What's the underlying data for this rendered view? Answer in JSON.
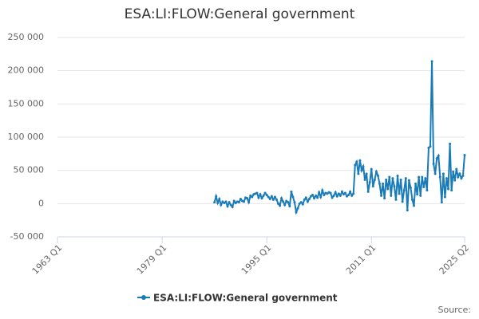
{
  "chart_data": {
    "type": "line",
    "title": "ESA:LI:FLOW:General government",
    "source": "Source:",
    "x": [
      "1987 Q1",
      "1987 Q2",
      "1987 Q3",
      "1987 Q4",
      "1988 Q1",
      "1988 Q2",
      "1988 Q3",
      "1988 Q4",
      "1989 Q1",
      "1989 Q2",
      "1989 Q3",
      "1989 Q4",
      "1990 Q1",
      "1990 Q2",
      "1990 Q3",
      "1990 Q4",
      "1991 Q1",
      "1991 Q2",
      "1991 Q3",
      "1991 Q4",
      "1992 Q1",
      "1992 Q2",
      "1992 Q3",
      "1992 Q4",
      "1993 Q1",
      "1993 Q2",
      "1993 Q3",
      "1993 Q4",
      "1994 Q1",
      "1994 Q2",
      "1994 Q3",
      "1994 Q4",
      "1995 Q1",
      "1995 Q2",
      "1995 Q3",
      "1995 Q4",
      "1996 Q1",
      "1996 Q2",
      "1996 Q3",
      "1996 Q4",
      "1997 Q1",
      "1997 Q2",
      "1997 Q3",
      "1997 Q4",
      "1998 Q1",
      "1998 Q2",
      "1998 Q3",
      "1998 Q4",
      "1999 Q1",
      "1999 Q2",
      "1999 Q3",
      "1999 Q4",
      "2000 Q1",
      "2000 Q2",
      "2000 Q3",
      "2000 Q4",
      "2001 Q1",
      "2001 Q2",
      "2001 Q3",
      "2001 Q4",
      "2002 Q1",
      "2002 Q2",
      "2002 Q3",
      "2002 Q4",
      "2003 Q1",
      "2003 Q2",
      "2003 Q3",
      "2003 Q4",
      "2004 Q1",
      "2004 Q2",
      "2004 Q3",
      "2004 Q4",
      "2005 Q1",
      "2005 Q2",
      "2005 Q3",
      "2005 Q4",
      "2006 Q1",
      "2006 Q2",
      "2006 Q3",
      "2006 Q4",
      "2007 Q1",
      "2007 Q2",
      "2007 Q3",
      "2007 Q4",
      "2008 Q1",
      "2008 Q2",
      "2008 Q3",
      "2008 Q4",
      "2009 Q1",
      "2009 Q2",
      "2009 Q3",
      "2009 Q4",
      "2010 Q1",
      "2010 Q2",
      "2010 Q3",
      "2010 Q4",
      "2011 Q1",
      "2011 Q2",
      "2011 Q3",
      "2011 Q4",
      "2012 Q1",
      "2012 Q2",
      "2012 Q3",
      "2012 Q4",
      "2013 Q1",
      "2013 Q2",
      "2013 Q3",
      "2013 Q4",
      "2014 Q1",
      "2014 Q2",
      "2014 Q3",
      "2014 Q4",
      "2015 Q1",
      "2015 Q2",
      "2015 Q3",
      "2015 Q4",
      "2016 Q1",
      "2016 Q2",
      "2016 Q3",
      "2016 Q4",
      "2017 Q1",
      "2017 Q2",
      "2017 Q3",
      "2017 Q4",
      "2018 Q1",
      "2018 Q2",
      "2018 Q3",
      "2018 Q4",
      "2019 Q1",
      "2019 Q2",
      "2019 Q3",
      "2019 Q4",
      "2020 Q1",
      "2020 Q2",
      "2020 Q3",
      "2020 Q4",
      "2021 Q1",
      "2021 Q2",
      "2021 Q3",
      "2021 Q4",
      "2022 Q1",
      "2022 Q2",
      "2022 Q3",
      "2022 Q4",
      "2023 Q1",
      "2023 Q2",
      "2023 Q3",
      "2023 Q4",
      "2024 Q1",
      "2024 Q2",
      "2024 Q3",
      "2024 Q4",
      "2025 Q1",
      "2025 Q2"
    ],
    "series": [
      {
        "name": "ESA:LI:FLOW:General government",
        "color": "#1a7bb9",
        "values": [
          2000,
          11000,
          1000,
          7000,
          -2000,
          3000,
          1000,
          3000,
          -4000,
          2000,
          -2000,
          -5000,
          4000,
          1000,
          3000,
          2000,
          7000,
          4000,
          3000,
          9000,
          8000,
          2000,
          12000,
          10000,
          14000,
          15000,
          16000,
          9000,
          14000,
          8000,
          12000,
          16000,
          13000,
          10000,
          7000,
          11000,
          6000,
          10000,
          6000,
          0,
          -3000,
          8000,
          3000,
          -2000,
          4000,
          2000,
          -4000,
          18000,
          10000,
          2000,
          -13000,
          -7000,
          0,
          2000,
          -1000,
          6000,
          9000,
          3000,
          7000,
          11000,
          13000,
          8000,
          12000,
          9000,
          17000,
          10000,
          20000,
          13000,
          16000,
          15000,
          17000,
          16000,
          9000,
          12000,
          17000,
          11000,
          15000,
          12000,
          18000,
          14000,
          16000,
          11000,
          13000,
          18000,
          12000,
          15000,
          58000,
          63000,
          45000,
          65000,
          50000,
          56000,
          36000,
          45000,
          18000,
          32000,
          52000,
          26000,
          36000,
          48000,
          42000,
          30000,
          12000,
          30000,
          8000,
          36000,
          22000,
          40000,
          12000,
          38000,
          26000,
          6000,
          42000,
          15000,
          36000,
          3000,
          20000,
          38000,
          -10000,
          35000,
          24000,
          6000,
          -3000,
          30000,
          14000,
          40000,
          12000,
          40000,
          25000,
          38000,
          20000,
          84000,
          86000,
          214000,
          60000,
          45000,
          68000,
          72000,
          40000,
          2000,
          45000,
          10000,
          38000,
          22000,
          90000,
          20000,
          48000,
          35000,
          52000,
          40000,
          45000,
          38000,
          42000,
          73000
        ]
      }
    ],
    "xlim": [
      "1963 Q1",
      "2025 Q2"
    ],
    "xticks": [
      "1963 Q1",
      "1979 Q1",
      "1995 Q1",
      "2011 Q1",
      "2025 Q2"
    ],
    "ylim": [
      -50000,
      250000
    ],
    "yticks": [
      {
        "value": -50000,
        "label": "-50 000"
      },
      {
        "value": 0,
        "label": "0"
      },
      {
        "value": 50000,
        "label": "50 000"
      },
      {
        "value": 100000,
        "label": "100 000"
      },
      {
        "value": 150000,
        "label": "150 000"
      },
      {
        "value": 200000,
        "label": "200 000"
      },
      {
        "value": 250000,
        "label": "250 000"
      }
    ],
    "grid": true,
    "legend": "bottom"
  }
}
